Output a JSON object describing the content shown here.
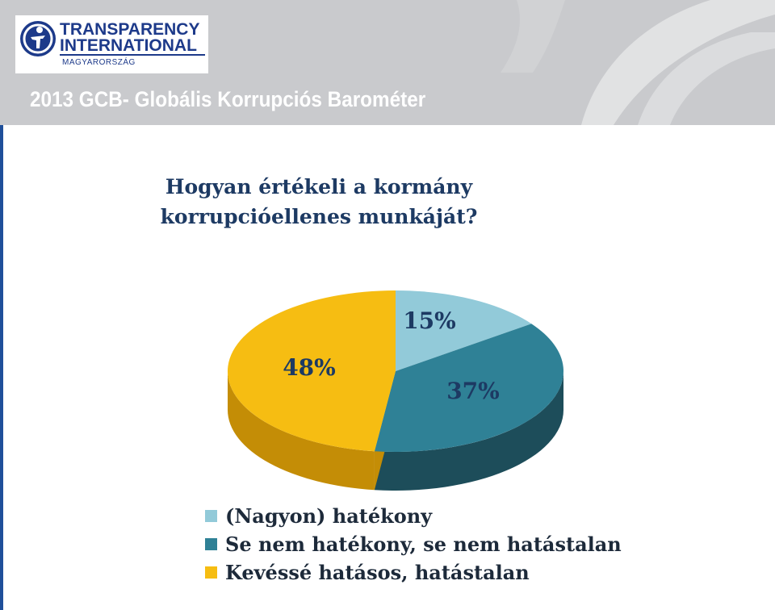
{
  "header": {
    "logo": {
      "line1": "TRANSPARENCY",
      "line2": "INTERNATIONAL",
      "sub": "MAGYARORSZÁG"
    },
    "title": "2013 GCB- Globális Korrupciós Barométer"
  },
  "colors": {
    "header_bg": "#c9cacd",
    "brand_blue": "#1d3a8a",
    "question_text": "#1d3a63"
  },
  "chart_data": {
    "type": "pie",
    "title_lines": [
      "Hogyan értékeli a kormány",
      "korrupcióellenes munkáját?"
    ],
    "legend_position": "bottom",
    "slices": [
      {
        "name": "(Nagyon) hatékony",
        "value": 15,
        "label": "15%",
        "color": "#92cad9",
        "side_color": "#5d97a8"
      },
      {
        "name": "Se nem hatékony, se nem hatástalan",
        "value": 37,
        "label": "37%",
        "color": "#2f8196",
        "side_color": "#1d4d5a"
      },
      {
        "name": "Kevéssé hatásos, hatástalan",
        "value": 48,
        "label": "48%",
        "color": "#f6bd12",
        "side_color": "#c48d06"
      }
    ]
  }
}
